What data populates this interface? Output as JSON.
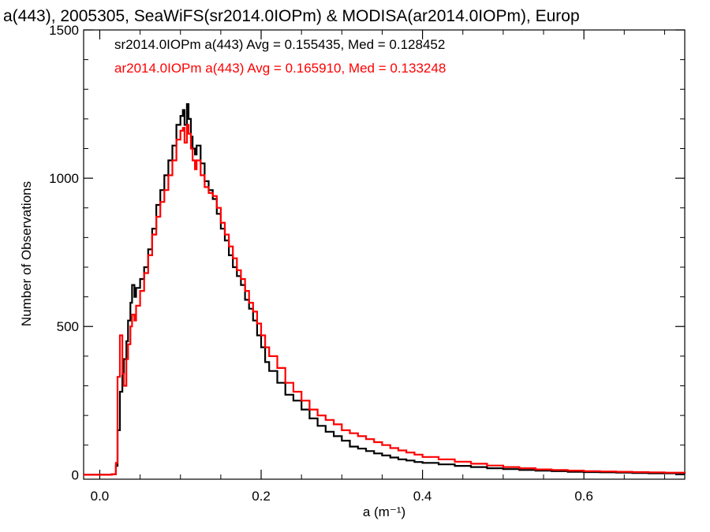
{
  "chart_data": {
    "type": "line",
    "title": "a(443), 2005305, SeaWiFS(sr2014.0IOPm) & MODISA(ar2014.0IOPm), Europ",
    "xlabel": "a (m⁻¹)",
    "ylabel": "Number of Observations",
    "xlim": [
      -0.02,
      0.725
    ],
    "ylim": [
      -15,
      1500
    ],
    "x_ticks": [
      0.0,
      0.2,
      0.4,
      0.6
    ],
    "x_tick_labels": [
      "0.0",
      "0.2",
      "0.4",
      "0.6"
    ],
    "y_ticks": [
      0,
      500,
      1000,
      1500
    ],
    "y_tick_labels": [
      "0",
      "500",
      "1000",
      "1500"
    ],
    "legend_position": "top-left",
    "grid": false,
    "series": [
      {
        "legend": "sr2014.0IOPm a(443) Avg = 0.155435, Med = 0.128452",
        "color": "#000000",
        "x": [
          -0.02,
          0.0,
          0.015,
          0.02,
          0.022,
          0.025,
          0.028,
          0.03,
          0.033,
          0.035,
          0.038,
          0.04,
          0.043,
          0.045,
          0.05,
          0.055,
          0.06,
          0.065,
          0.07,
          0.075,
          0.08,
          0.085,
          0.09,
          0.095,
          0.1,
          0.103,
          0.105,
          0.108,
          0.11,
          0.113,
          0.115,
          0.118,
          0.12,
          0.125,
          0.13,
          0.135,
          0.14,
          0.145,
          0.15,
          0.155,
          0.16,
          0.165,
          0.17,
          0.175,
          0.18,
          0.185,
          0.19,
          0.195,
          0.2,
          0.205,
          0.21,
          0.22,
          0.23,
          0.24,
          0.25,
          0.26,
          0.27,
          0.28,
          0.29,
          0.3,
          0.31,
          0.32,
          0.33,
          0.34,
          0.35,
          0.36,
          0.37,
          0.38,
          0.39,
          0.4,
          0.42,
          0.44,
          0.46,
          0.48,
          0.5,
          0.52,
          0.54,
          0.56,
          0.58,
          0.6,
          0.62,
          0.64,
          0.66,
          0.68,
          0.7,
          0.725
        ],
        "values": [
          0,
          0,
          2,
          30,
          150,
          280,
          340,
          390,
          450,
          520,
          580,
          640,
          600,
          630,
          660,
          700,
          760,
          830,
          910,
          960,
          1010,
          1060,
          1110,
          1180,
          1210,
          1230,
          1180,
          1250,
          1200,
          1140,
          1100,
          1080,
          1110,
          1050,
          990,
          960,
          930,
          880,
          830,
          790,
          740,
          700,
          670,
          640,
          590,
          560,
          520,
          470,
          430,
          380,
          350,
          310,
          270,
          250,
          220,
          190,
          165,
          145,
          130,
          115,
          95,
          88,
          80,
          72,
          65,
          58,
          52,
          48,
          43,
          40,
          35,
          30,
          26,
          22,
          19,
          16,
          14,
          12,
          10,
          9,
          8,
          7,
          6,
          5,
          5,
          4
        ]
      },
      {
        "legend": "ar2014.0IOPm a(443) Avg = 0.165910, Med = 0.133248",
        "color": "#ff0000",
        "x": [
          -0.02,
          0.0,
          0.015,
          0.02,
          0.022,
          0.025,
          0.028,
          0.03,
          0.033,
          0.035,
          0.038,
          0.04,
          0.043,
          0.045,
          0.05,
          0.055,
          0.06,
          0.065,
          0.07,
          0.075,
          0.08,
          0.085,
          0.09,
          0.095,
          0.1,
          0.103,
          0.105,
          0.108,
          0.11,
          0.113,
          0.115,
          0.118,
          0.12,
          0.125,
          0.13,
          0.135,
          0.14,
          0.145,
          0.15,
          0.155,
          0.16,
          0.165,
          0.17,
          0.175,
          0.18,
          0.185,
          0.19,
          0.195,
          0.2,
          0.205,
          0.21,
          0.22,
          0.23,
          0.24,
          0.25,
          0.26,
          0.27,
          0.28,
          0.29,
          0.3,
          0.31,
          0.32,
          0.33,
          0.34,
          0.35,
          0.36,
          0.37,
          0.38,
          0.39,
          0.4,
          0.42,
          0.44,
          0.46,
          0.48,
          0.5,
          0.52,
          0.54,
          0.56,
          0.58,
          0.6,
          0.62,
          0.64,
          0.66,
          0.68,
          0.7,
          0.725
        ],
        "values": [
          0,
          0,
          2,
          40,
          330,
          470,
          340,
          300,
          390,
          440,
          500,
          540,
          520,
          570,
          620,
          680,
          740,
          810,
          870,
          920,
          960,
          1010,
          1060,
          1130,
          1160,
          1170,
          1120,
          1180,
          1150,
          1100,
          1060,
          1030,
          1060,
          1010,
          970,
          950,
          940,
          900,
          850,
          810,
          770,
          730,
          690,
          660,
          620,
          580,
          550,
          510,
          470,
          430,
          400,
          360,
          310,
          280,
          250,
          220,
          200,
          185,
          170,
          150,
          140,
          130,
          120,
          110,
          100,
          90,
          82,
          75,
          68,
          60,
          52,
          44,
          37,
          31,
          26,
          22,
          18,
          16,
          14,
          12,
          11,
          10,
          9,
          8,
          7,
          6
        ]
      }
    ]
  }
}
